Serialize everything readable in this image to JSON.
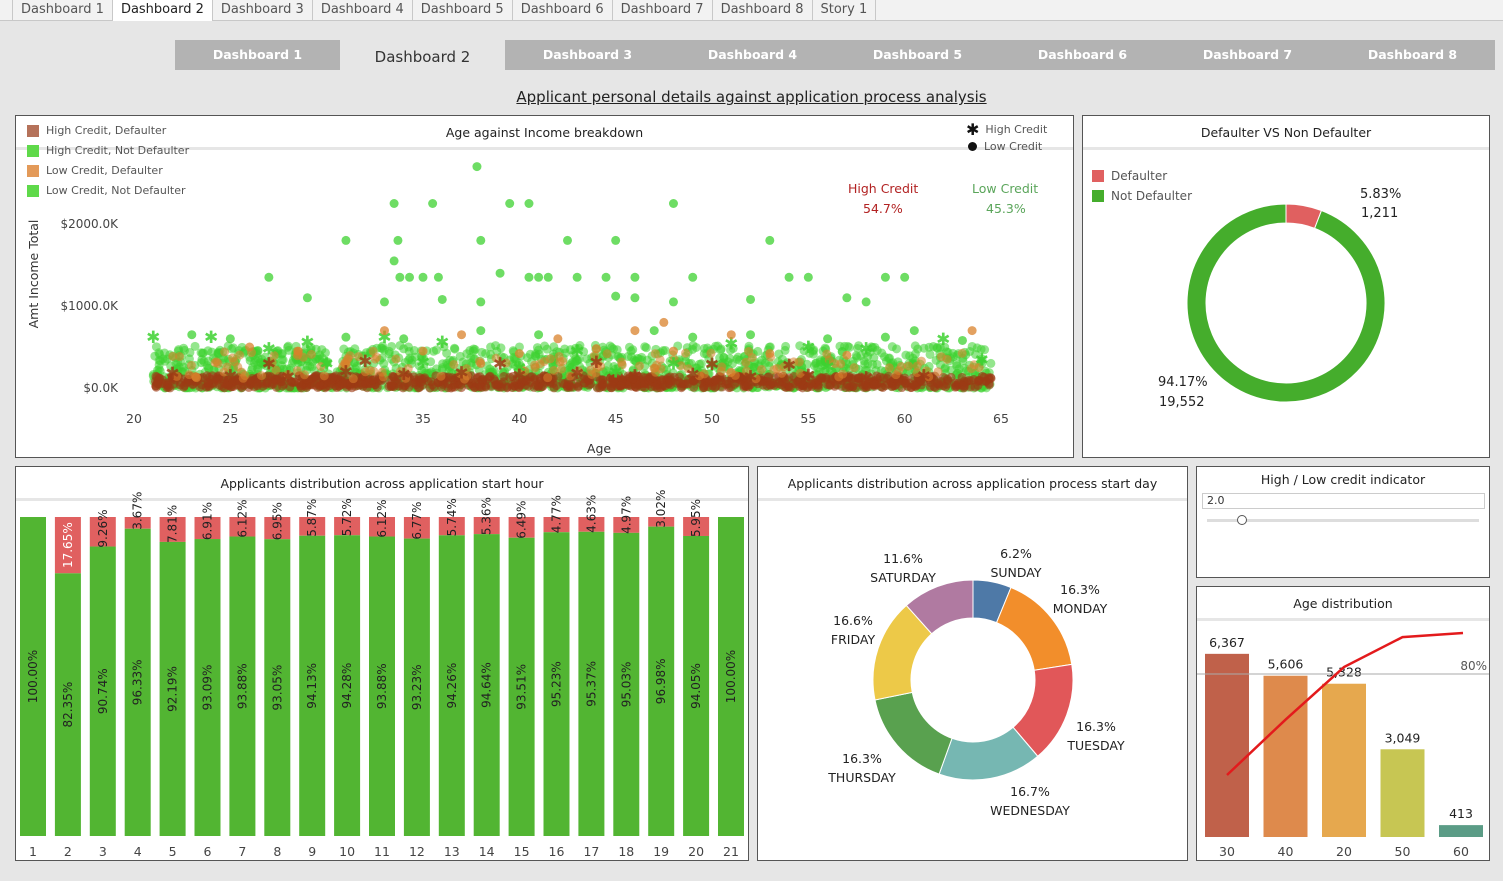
{
  "tabs": [
    "Dashboard 1",
    "Dashboard 2",
    "Dashboard 3",
    "Dashboard 4",
    "Dashboard 5",
    "Dashboard 6",
    "Dashboard 7",
    "Dashboard 8",
    "Story 1"
  ],
  "active_tab": 1,
  "nav_buttons": [
    "Dashboard 1",
    "Dashboard 2",
    "Dashboard 3",
    "Dashboard 4",
    "Dashboard 5",
    "Dashboard 6",
    "Dashboard 7",
    "Dashboard 8"
  ],
  "active_nav": 1,
  "page_title": "Applicant personal details against application process analysis",
  "colors": {
    "green": "#52b532",
    "red": "#e06060",
    "high_credit_text": "#b22222",
    "low_credit_text": "#5aa55a",
    "scatter_green": "#3dd130",
    "scatter_brown": "#9c3b14",
    "scatter_orange": "#d9822b"
  },
  "scatter": {
    "title": "Age against Income breakdown",
    "legend": [
      {
        "label": "High Credit, Defaulter",
        "color": "#b5725a"
      },
      {
        "label": "High Credit, Not Defaulter",
        "color": "#5fd94a"
      },
      {
        "label": "Low Credit, Defaulter",
        "color": "#e39a59"
      },
      {
        "label": "Low Credit, Not Defaulter",
        "color": "#5fd94a"
      }
    ],
    "shape_legend": [
      {
        "label": "High Credit",
        "icon": "asterisk-icon"
      },
      {
        "label": "Low Credit",
        "icon": "dot-icon"
      }
    ],
    "high_credit_label": "High Credit",
    "high_credit_pct": "54.7%",
    "low_credit_label": "Low Credit",
    "low_credit_pct": "45.3%"
  },
  "donut_defaulter": {
    "title": "Defaulter VS Non Defaulter",
    "legend": [
      {
        "label": "Defaulter",
        "color": "#e06060"
      },
      {
        "label": "Not Defaulter",
        "color": "#45ad2c"
      }
    ],
    "defaulter_pct": "5.83%",
    "defaulter_count": "1,211",
    "not_defaulter_pct": "94.17%",
    "not_defaulter_count": "19,552"
  },
  "hour_chart": {
    "title": "Applicants distribution across application start hour"
  },
  "day_chart": {
    "title": "Applicants distribution across application process start day"
  },
  "credit_indicator": {
    "title": "High / Low credit indicator",
    "value": "2.0",
    "slider_level": 0.13
  },
  "age_dist": {
    "title": "Age distribution",
    "pct80_label": "80%"
  },
  "chart_data": [
    {
      "type": "scatter",
      "title": "Age against Income breakdown",
      "xlabel": "Age",
      "ylabel": "Amt Income Total",
      "xlim": [
        20,
        65
      ],
      "ylim": [
        0,
        2400
      ],
      "xticks": [
        "20",
        "25",
        "30",
        "35",
        "40",
        "45",
        "50",
        "55",
        "60",
        "65"
      ],
      "yticks": [
        {
          "value": 0,
          "label": "$0.0K"
        },
        {
          "value": 1000,
          "label": "$1000.0K"
        },
        {
          "value": 2000,
          "label": "$2000.0K"
        }
      ],
      "series": [
        {
          "name": "High Credit, Not Defaulter",
          "marker": "asterisk",
          "points": [
            [
              21,
              620
            ],
            [
              24,
              620
            ],
            [
              27,
              480
            ],
            [
              29,
              560
            ],
            [
              33,
              620
            ],
            [
              36,
              560
            ],
            [
              43,
              450
            ],
            [
              51,
              540
            ],
            [
              55,
              500
            ],
            [
              58,
              480
            ],
            [
              62,
              600
            ],
            [
              64,
              350
            ],
            [
              30,
              300
            ],
            [
              40,
              250
            ],
            [
              45,
              200
            ],
            [
              50,
              280
            ],
            [
              35,
              320
            ],
            [
              48,
              300
            ],
            [
              56,
              260
            ]
          ]
        },
        {
          "name": "Low Credit, Not Defaulter",
          "marker": "dot",
          "points": [
            [
              37.8,
              2700
            ],
            [
              33.5,
              2250
            ],
            [
              35.5,
              2250
            ],
            [
              39.5,
              2250
            ],
            [
              40.5,
              2250
            ],
            [
              48,
              2250
            ],
            [
              31,
              1800
            ],
            [
              33.7,
              1800
            ],
            [
              38,
              1800
            ],
            [
              42.5,
              1800
            ],
            [
              45,
              1800
            ],
            [
              53,
              1800
            ],
            [
              33.5,
              1550
            ],
            [
              27,
              1350
            ],
            [
              33.8,
              1350
            ],
            [
              34.3,
              1350
            ],
            [
              35,
              1350
            ],
            [
              35.8,
              1350
            ],
            [
              39,
              1400
            ],
            [
              40.5,
              1350
            ],
            [
              41,
              1350
            ],
            [
              41.5,
              1350
            ],
            [
              43,
              1350
            ],
            [
              44.5,
              1350
            ],
            [
              46,
              1350
            ],
            [
              49,
              1350
            ],
            [
              54,
              1350
            ],
            [
              55,
              1350
            ],
            [
              59,
              1350
            ],
            [
              60,
              1350
            ],
            [
              29,
              1100
            ],
            [
              33,
              1050
            ],
            [
              36,
              1080
            ],
            [
              38,
              1050
            ],
            [
              46,
              1100
            ],
            [
              48,
              1050
            ],
            [
              52,
              1080
            ],
            [
              57,
              1100
            ],
            [
              58,
              1050
            ],
            [
              45,
              1120
            ],
            [
              60.5,
              700
            ],
            [
              23,
              650
            ],
            [
              25,
              600
            ],
            [
              31,
              620
            ],
            [
              34,
              600
            ],
            [
              38,
              700
            ],
            [
              41,
              650
            ],
            [
              47,
              700
            ],
            [
              49,
              620
            ],
            [
              52,
              650
            ],
            [
              56,
              600
            ],
            [
              59,
              620
            ],
            [
              63,
              580
            ]
          ]
        },
        {
          "name": "Low Credit, Defaulter",
          "marker": "dot",
          "points": [
            [
              33,
              700
            ],
            [
              37,
              650
            ],
            [
              42,
              600
            ],
            [
              46,
              700
            ],
            [
              47.5,
              800
            ],
            [
              51,
              650
            ],
            [
              63.5,
              700
            ],
            [
              26,
              500
            ],
            [
              28.5,
              450
            ],
            [
              35,
              450
            ],
            [
              40,
              420
            ],
            [
              44,
              480
            ],
            [
              48,
              450
            ],
            [
              53,
              420
            ],
            [
              57,
              400
            ],
            [
              38,
              300
            ]
          ]
        },
        {
          "name": "High Credit, Defaulter",
          "marker": "asterisk",
          "points": [
            [
              22,
              180
            ],
            [
              25,
              150
            ],
            [
              28,
              140
            ],
            [
              31,
              200
            ],
            [
              34,
              170
            ],
            [
              37,
              190
            ],
            [
              40,
              160
            ],
            [
              43,
              180
            ],
            [
              46,
              150
            ],
            [
              49,
              170
            ],
            [
              52,
              140
            ],
            [
              55,
              160
            ],
            [
              58,
              130
            ],
            [
              61,
              150
            ],
            [
              27,
              300
            ],
            [
              32,
              330
            ],
            [
              39,
              300
            ],
            [
              44,
              320
            ],
            [
              50,
              290
            ],
            [
              54,
              280
            ]
          ]
        }
      ],
      "annotations": [
        {
          "label": "High Credit",
          "value": "54.7%"
        },
        {
          "label": "Low Credit",
          "value": "45.3%"
        }
      ]
    },
    {
      "type": "pie",
      "title": "Defaulter VS Non Defaulter",
      "categories": [
        "Defaulter",
        "Not Defaulter"
      ],
      "values": [
        5.83,
        94.17
      ],
      "counts": [
        "1,211",
        "19,552"
      ]
    },
    {
      "type": "bar",
      "title": "Applicants distribution across application start hour",
      "categories": [
        "1",
        "2",
        "3",
        "4",
        "5",
        "6",
        "7",
        "8",
        "9",
        "10",
        "11",
        "12",
        "13",
        "14",
        "15",
        "16",
        "17",
        "18",
        "19",
        "20",
        "21"
      ],
      "series": [
        {
          "name": "Not Defaulter",
          "values": [
            100.0,
            82.35,
            90.74,
            96.33,
            92.19,
            93.09,
            93.88,
            93.05,
            94.13,
            94.28,
            93.88,
            93.23,
            94.26,
            94.64,
            93.51,
            95.23,
            95.37,
            95.03,
            96.98,
            94.05,
            100.0
          ],
          "labels": [
            "100.00%",
            "82.35%",
            "90.74%",
            "96.33%",
            "92.19%",
            "93.09%",
            "93.88%",
            "93.05%",
            "94.13%",
            "94.28%",
            "93.88%",
            "93.23%",
            "94.26%",
            "94.64%",
            "93.51%",
            "95.23%",
            "95.37%",
            "95.03%",
            "96.98%",
            "94.05%",
            "100.00%"
          ]
        },
        {
          "name": "Defaulter",
          "values": [
            0,
            17.65,
            9.26,
            3.67,
            7.81,
            6.91,
            6.12,
            6.95,
            5.87,
            5.72,
            6.12,
            6.77,
            5.74,
            5.36,
            6.49,
            4.77,
            4.63,
            4.97,
            3.02,
            5.95,
            0
          ],
          "labels": [
            "",
            "17.65%",
            "9.26%",
            "3.67%",
            "7.81%",
            "6.91%",
            "6.12%",
            "6.95%",
            "5.87%",
            "5.72%",
            "6.12%",
            "6.77%",
            "5.74%",
            "5.36%",
            "6.49%",
            "4.77%",
            "4.63%",
            "4.97%",
            "3.02%",
            "5.95%",
            ""
          ]
        }
      ]
    },
    {
      "type": "pie",
      "title": "Applicants distribution across application process start day",
      "categories": [
        "SUNDAY",
        "MONDAY",
        "TUESDAY",
        "WEDNESDAY",
        "THURSDAY",
        "FRIDAY",
        "SATURDAY"
      ],
      "values": [
        6.2,
        16.3,
        16.3,
        16.7,
        16.3,
        16.6,
        11.6
      ],
      "labels": [
        "6.2%",
        "16.3%",
        "16.3%",
        "16.7%",
        "16.3%",
        "16.6%",
        "11.6%"
      ],
      "colors": [
        "#4e79a7",
        "#f28e2b",
        "#e15759",
        "#76b7b2",
        "#59a14f",
        "#edc948",
        "#b07aa1"
      ]
    },
    {
      "type": "bar",
      "title": "Age distribution",
      "categories": [
        "30",
        "40",
        "20",
        "50",
        "60"
      ],
      "values": [
        6367,
        5606,
        5328,
        3049,
        413
      ],
      "labels": [
        "6,367",
        "5,606",
        "5,328",
        "3,049",
        "413"
      ],
      "colors": [
        "#c0614a",
        "#de8a4c",
        "#e6a84e",
        "#c7c653",
        "#5b9c86"
      ],
      "cumulative_pct": [
        30.7,
        57.7,
        83.4,
        98.0,
        100.0
      ],
      "reference_line": {
        "value": 80,
        "label": "80%"
      },
      "ylim": [
        0,
        7300
      ]
    }
  ]
}
